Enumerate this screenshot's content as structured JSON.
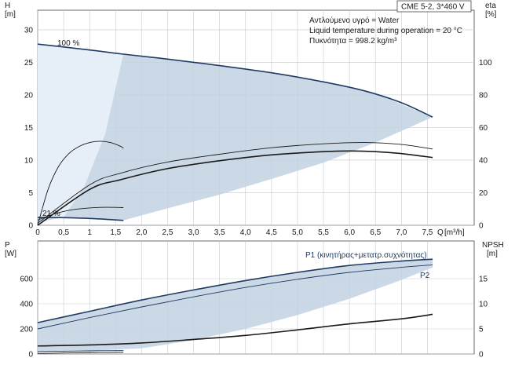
{
  "chart_data": [
    {
      "type": "line",
      "panel": "head-efficiency",
      "title": "CME 5-2, 3*460 V",
      "annotations": [
        "Αντλούμενο υγρό = Water",
        "Liquid temperature during operation = 20 °C",
        "Πυκνότητα = 998.2 kg/m³"
      ],
      "xlabel": "Q",
      "xunit": "[m³/h]",
      "xlim": [
        0,
        8.4
      ],
      "xticks": [
        "0",
        "0,5",
        "1",
        "1,5",
        "2,0",
        "2,5",
        "3,0",
        "3,5",
        "4,0",
        "4,5",
        "5,0",
        "5,5",
        "6,0",
        "6,5",
        "7,0",
        "7,5"
      ],
      "ylabel_left": "H",
      "yunit_left": "[m]",
      "ylim_left": [
        0,
        33
      ],
      "yticks_left": [
        "0",
        "5",
        "10",
        "15",
        "20",
        "25",
        "30"
      ],
      "ylabel_right": "eta",
      "yunit_right": "[%]",
      "ylim_right": [
        0,
        132
      ],
      "yticks_right": [
        "0",
        "20",
        "40",
        "60",
        "80",
        "100"
      ],
      "grid": true,
      "series": [
        {
          "label": "100 %",
          "axis": "left",
          "role": "head-max",
          "color": "#1f3a63",
          "x": [
            0,
            1.0,
            1.6,
            2.5,
            3.5,
            4.5,
            5.5,
            6.3,
            7.0,
            7.6
          ],
          "y": [
            27.8,
            26.9,
            26.3,
            25.5,
            24.5,
            23.4,
            22.0,
            20.6,
            18.8,
            16.6
          ]
        },
        {
          "label": "21 %",
          "axis": "left",
          "role": "head-min",
          "color": "#1f3a63",
          "x": [
            0,
            0.3,
            0.6,
            1.0,
            1.35,
            1.65
          ],
          "y": [
            1.2,
            1.2,
            1.15,
            1.05,
            0.9,
            0.75
          ]
        },
        {
          "axis": "left",
          "role": "head-curve",
          "color": "#1a1a1a",
          "x": [
            0,
            1.0,
            1.6,
            2.5,
            3.5,
            4.5,
            5.5,
            6.3,
            7.0,
            7.6
          ],
          "y": [
            0.3,
            6.2,
            8.0,
            9.7,
            10.9,
            11.9,
            12.5,
            12.7,
            12.4,
            11.7
          ]
        },
        {
          "axis": "right",
          "role": "efficiency",
          "color": "#1a1a1a",
          "x": [
            0,
            1.0,
            1.6,
            2.5,
            3.5,
            4.5,
            5.5,
            6.0,
            6.5,
            7.0,
            7.6
          ],
          "y": [
            0,
            22,
            28,
            34.8,
            39.6,
            43.2,
            45.2,
            45.6,
            45.2,
            44.0,
            41.6
          ]
        },
        {
          "axis": "right",
          "role": "efficiency-low-speed",
          "color": "#1a1a1a",
          "x": [
            0,
            0.2,
            0.4,
            0.6,
            0.8,
            1.0,
            1.2,
            1.4,
            1.6,
            1.65
          ],
          "y": [
            0,
            22,
            36,
            44,
            48.4,
            50.8,
            51.6,
            50.8,
            48.4,
            47.2
          ]
        },
        {
          "axis": "right",
          "role": "efficiency-low-speed",
          "color": "#1a1a1a",
          "x": [
            0,
            0.3,
            0.6,
            0.9,
            1.2,
            1.5,
            1.65
          ],
          "y": [
            3.2,
            6.8,
            9.2,
            10.4,
            11.0,
            11.0,
            10.8
          ]
        }
      ],
      "operating_range": {
        "x": [
          0,
          0.5,
          1.0,
          1.5,
          1.65,
          2.5,
          3.5,
          4.5,
          5.5,
          6.5,
          7.6
        ],
        "upper": [
          27.8,
          27.4,
          26.9,
          26.4,
          26.3,
          25.5,
          24.5,
          23.4,
          22.0,
          20.2,
          16.6
        ],
        "lower": [
          0.5,
          1.2,
          1.1,
          0.85,
          0.75,
          2.6,
          4.7,
          7.1,
          9.6,
          12.7,
          16.6
        ]
      }
    },
    {
      "type": "line",
      "panel": "power-npsh",
      "xlim": [
        0,
        8.4
      ],
      "ylabel_left": "P",
      "yunit_left": "[W]",
      "ylim_left": [
        0,
        900
      ],
      "yticks_left": [
        "0",
        "200",
        "400",
        "600"
      ],
      "ylabel_right": "NPSH",
      "yunit_right": "[m]",
      "ylim_right": [
        0,
        22.5
      ],
      "yticks_right": [
        "0",
        "5",
        "10",
        "15"
      ],
      "grid": true,
      "series": [
        {
          "label": "P1 (κινητήρας+μετατρ.συχνότητας)",
          "axis": "left",
          "role": "p1",
          "color": "#1f3a63",
          "x": [
            0,
            1.0,
            2.0,
            3.0,
            4.0,
            5.0,
            6.0,
            7.0,
            7.6
          ],
          "y": [
            250,
            340,
            430,
            510,
            585,
            650,
            705,
            740,
            755
          ]
        },
        {
          "label": "P2",
          "axis": "left",
          "role": "p2",
          "color": "#1f3a63",
          "x": [
            0,
            1.0,
            2.0,
            3.0,
            4.0,
            5.0,
            6.0,
            7.0,
            7.6
          ],
          "y": [
            200,
            290,
            375,
            455,
            530,
            595,
            650,
            690,
            710
          ]
        },
        {
          "axis": "left",
          "role": "p-low",
          "color": "#1f3a63",
          "x": [
            0,
            0.5,
            1.0,
            1.65
          ],
          "y": [
            20,
            22,
            25,
            28
          ]
        },
        {
          "axis": "left",
          "role": "p-low",
          "color": "#1a1a1a",
          "x": [
            0,
            0.5,
            1.0,
            1.65
          ],
          "y": [
            5,
            8,
            11,
            14
          ]
        },
        {
          "axis": "right",
          "role": "npsh",
          "color": "#1a1a1a",
          "x": [
            0,
            1.0,
            2.0,
            3.0,
            4.0,
            5.0,
            6.0,
            7.0,
            7.6
          ],
          "y": [
            1.6,
            1.8,
            2.2,
            2.9,
            3.7,
            4.8,
            6.0,
            7.0,
            7.9
          ]
        }
      ],
      "operating_range": {
        "x": [
          0,
          1.0,
          2.0,
          3.0,
          4.0,
          5.0,
          6.0,
          7.0,
          7.6
        ],
        "upper": [
          250,
          340,
          430,
          510,
          585,
          650,
          705,
          740,
          755
        ],
        "lower": [
          20,
          25,
          45,
          110,
          200,
          310,
          440,
          590,
          690
        ]
      }
    }
  ]
}
